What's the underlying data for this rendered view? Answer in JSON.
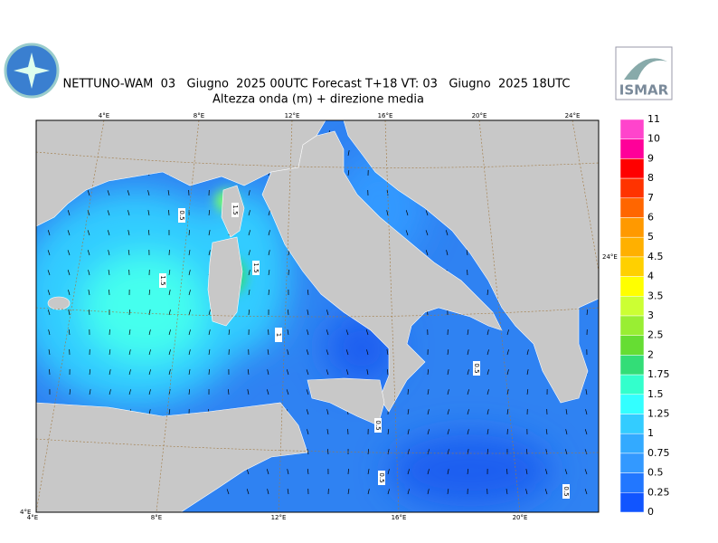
{
  "header": {
    "title": "NETTUNO-WAM  03   Giugno  2025 00UTC Forecast T+18 VT: 03   Giugno  2025 18UTC",
    "subtitle": "Altezza onda (m) + direzione media"
  },
  "logo": "ISMAR",
  "map": {
    "lon_labels_top": [
      "4°E",
      "8°E",
      "12°E",
      "16°E",
      "20°E",
      "24°E"
    ],
    "lon_labels_bottom": [
      "4°E",
      "8°E",
      "12°E",
      "16°E",
      "20°E"
    ],
    "side_labels": [
      "24°E",
      "4°E"
    ],
    "contour_labels": [
      "0.5",
      "1.5",
      "1.5",
      "1.5",
      "1",
      "0.5",
      "0.5",
      "0.5",
      "0.5"
    ]
  },
  "legend": {
    "levels": [
      11,
      10,
      9,
      8,
      7,
      6,
      5,
      4.5,
      4,
      3.5,
      3,
      2.5,
      2,
      1.75,
      1.5,
      1.25,
      1,
      0.75,
      0.5,
      0.25,
      0
    ],
    "colors": [
      "#ff44cc",
      "#ff0099",
      "#ff0000",
      "#ff3300",
      "#ff6600",
      "#ff9900",
      "#ffb000",
      "#ffd000",
      "#ffff00",
      "#ccff33",
      "#99ee33",
      "#66dd33",
      "#33dd77",
      "#33ffcc",
      "#33ffff",
      "#33ccff",
      "#33aaff",
      "#3399ff",
      "#2277ff",
      "#1155ff"
    ]
  }
}
